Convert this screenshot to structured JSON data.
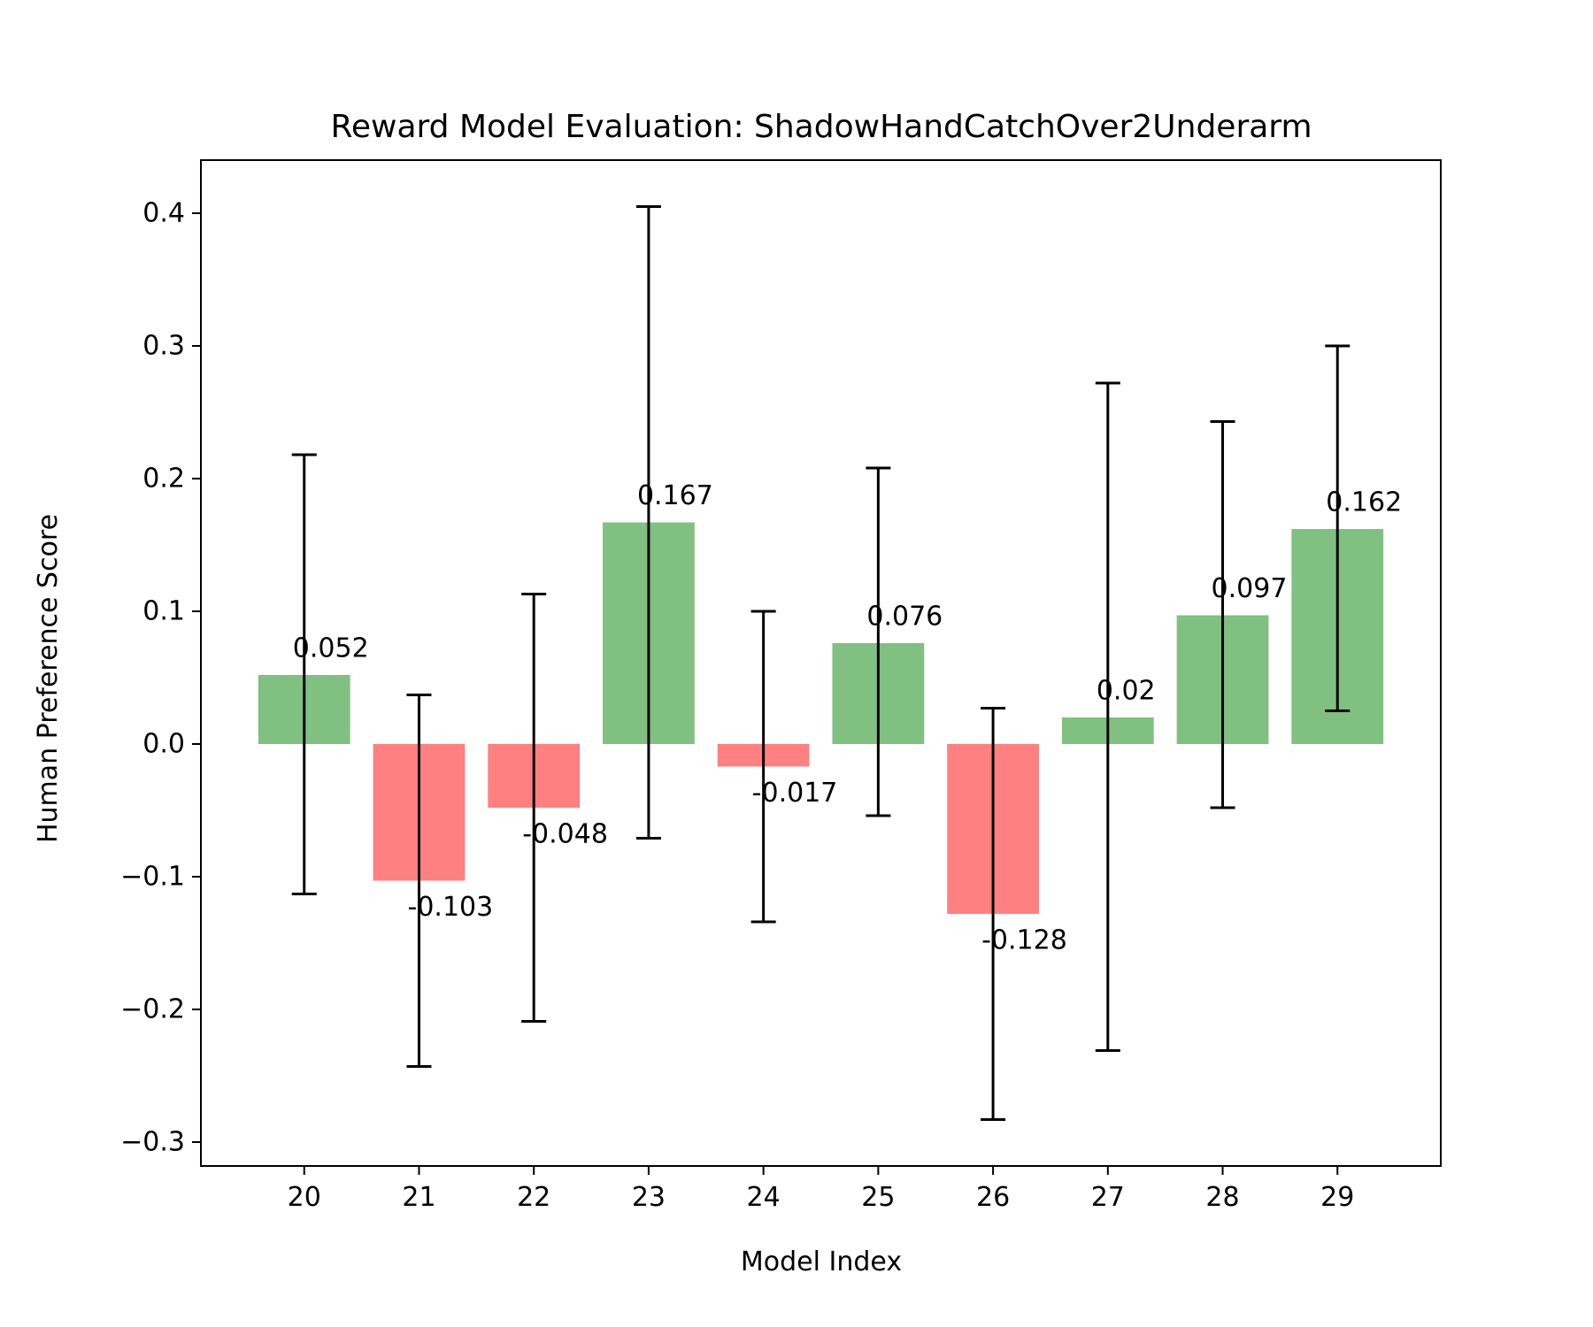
{
  "chart_data": {
    "type": "bar",
    "title": "Reward Model Evaluation: ShadowHandCatchOver2Underarm",
    "xlabel": "Model Index",
    "ylabel": "Human Preference Score",
    "categories": [
      "20",
      "21",
      "22",
      "23",
      "24",
      "25",
      "26",
      "27",
      "28",
      "29"
    ],
    "values": [
      0.052,
      -0.103,
      -0.048,
      0.167,
      -0.017,
      0.076,
      -0.128,
      0.02,
      0.097,
      0.162
    ],
    "data_labels": [
      "0.052",
      "-0.103",
      "-0.048",
      "0.167",
      "-0.017",
      "0.076",
      "-0.128",
      "0.02",
      "0.097",
      "0.162"
    ],
    "error_low": [
      -0.113,
      -0.243,
      -0.209,
      -0.071,
      -0.134,
      -0.054,
      -0.283,
      -0.231,
      -0.048,
      0.025
    ],
    "error_high": [
      0.218,
      0.037,
      0.113,
      0.405,
      0.1,
      0.208,
      0.027,
      0.272,
      0.243,
      0.3
    ],
    "yticks": [
      -0.3,
      -0.2,
      -0.1,
      0.0,
      0.1,
      0.2,
      0.3,
      0.4
    ],
    "ytick_labels": [
      "−0.3",
      "−0.2",
      "−0.1",
      "0.0",
      "0.1",
      "0.2",
      "0.3",
      "0.4"
    ],
    "ylim": [
      -0.318,
      0.44
    ],
    "xlim": [
      19.1,
      29.9
    ],
    "grid": false,
    "legend": false,
    "colors": {
      "positive": "#80c080",
      "negative": "#ff8080",
      "errorbar": "#000000",
      "axes": "#000000"
    }
  }
}
